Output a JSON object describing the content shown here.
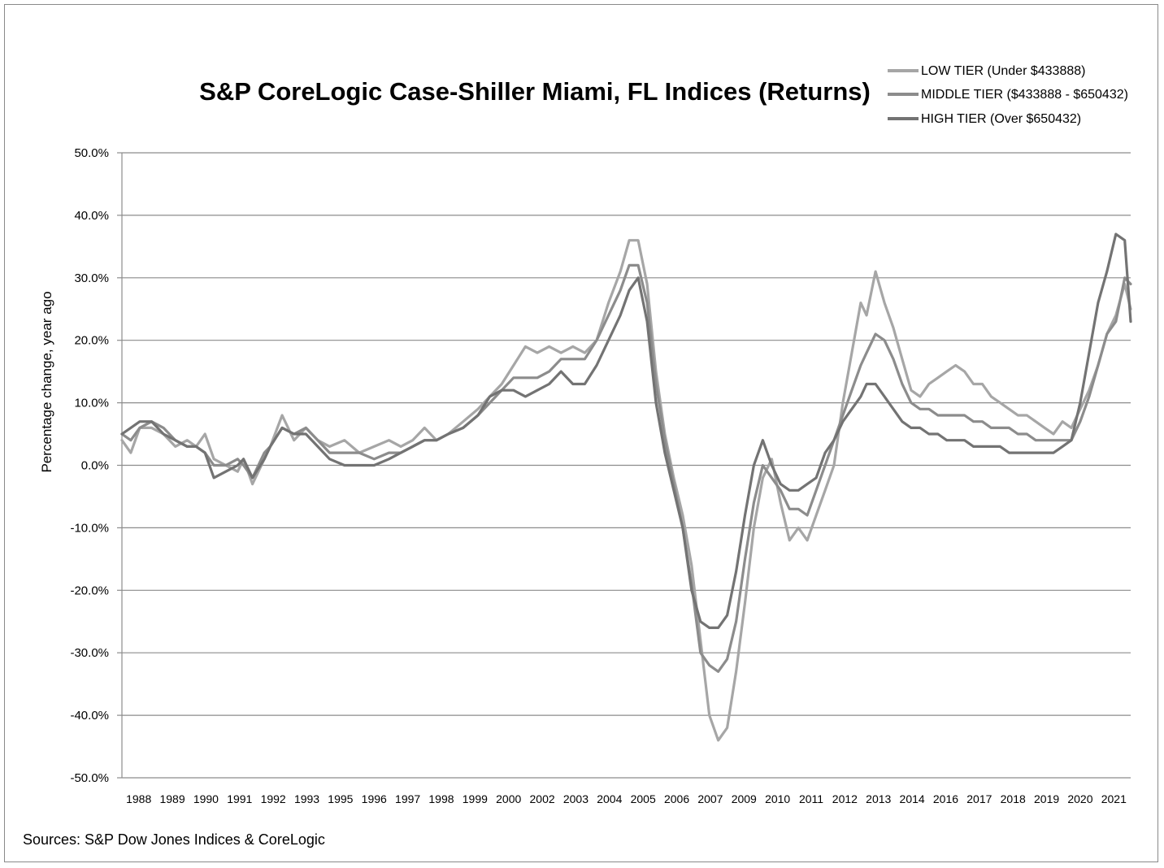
{
  "chart_data": {
    "type": "line",
    "title": "S&P CoreLogic Case-Shiller Miami, FL Indices (Returns)",
    "xlabel": "",
    "ylabel": "Percentage change, year ago",
    "source": "Sources: S&P Dow Jones Indices & CoreLogic",
    "ylim": [
      -50,
      50
    ],
    "xlim": [
      1988.0,
      2022.0
    ],
    "grid": true,
    "legend_position": "top-right",
    "y_ticks": [
      "50.0%",
      "40.0%",
      "30.0%",
      "20.0%",
      "10.0%",
      "0.0%",
      "-10.0%",
      "-20.0%",
      "-30.0%",
      "-40.0%",
      "-50.0%"
    ],
    "y_tick_values": [
      50,
      40,
      30,
      20,
      10,
      0,
      -10,
      -20,
      -30,
      -40,
      -50
    ],
    "x_ticks": [
      "1988",
      "1989",
      "1990",
      "1991",
      "1992",
      "1993",
      "1995",
      "1996",
      "1997",
      "1998",
      "1999",
      "2000",
      "2002",
      "2003",
      "2004",
      "2005",
      "2006",
      "2007",
      "2009",
      "2010",
      "2011",
      "2012",
      "2013",
      "2014",
      "2016",
      "2017",
      "2018",
      "2019",
      "2020",
      "2021"
    ],
    "series": [
      {
        "name": "LOW TIER (Under $433888)",
        "color": "#a6a6a6",
        "x": [
          1988.0,
          1988.3,
          1988.6,
          1989.0,
          1989.4,
          1989.8,
          1990.2,
          1990.5,
          1990.8,
          1991.1,
          1991.5,
          1991.9,
          1992.1,
          1992.4,
          1992.8,
          1993.0,
          1993.4,
          1993.8,
          1994.2,
          1994.6,
          1995.0,
          1995.5,
          1996.0,
          1996.5,
          1997.0,
          1997.4,
          1997.8,
          1998.2,
          1998.6,
          1999.0,
          1999.5,
          2000.0,
          2000.4,
          2000.8,
          2001.2,
          2001.6,
          2002.0,
          2002.4,
          2002.8,
          2003.2,
          2003.6,
          2004.0,
          2004.4,
          2004.8,
          2005.1,
          2005.4,
          2005.7,
          2006.0,
          2006.3,
          2006.6,
          2006.9,
          2007.2,
          2007.5,
          2007.8,
          2008.1,
          2008.4,
          2008.7,
          2009.0,
          2009.3,
          2009.6,
          2009.9,
          2010.2,
          2010.5,
          2010.8,
          2011.1,
          2011.4,
          2011.7,
          2012.0,
          2012.3,
          2012.6,
          2012.9,
          2013.1,
          2013.4,
          2013.7,
          2014.0,
          2014.3,
          2014.6,
          2014.9,
          2015.2,
          2015.5,
          2015.8,
          2016.1,
          2016.4,
          2016.7,
          2017.0,
          2017.3,
          2017.6,
          2017.9,
          2018.2,
          2018.5,
          2018.8,
          2019.1,
          2019.4,
          2019.7,
          2020.0,
          2020.3,
          2020.6,
          2020.9,
          2021.2,
          2021.5,
          2021.8,
          2022.0
        ],
        "values": [
          4,
          2,
          6,
          6,
          5,
          3,
          4,
          3,
          5,
          1,
          0,
          -1,
          1,
          -3,
          1,
          3,
          8,
          4,
          6,
          4,
          3,
          4,
          2,
          3,
          4,
          3,
          4,
          6,
          4,
          5,
          7,
          9,
          11,
          13,
          16,
          19,
          18,
          19,
          18,
          19,
          18,
          20,
          26,
          31,
          36,
          36,
          29,
          15,
          5,
          -2,
          -8,
          -16,
          -28,
          -40,
          -44,
          -42,
          -33,
          -22,
          -10,
          -2,
          1,
          -6,
          -12,
          -10,
          -12,
          -8,
          -4,
          0,
          10,
          18,
          26,
          24,
          31,
          26,
          22,
          17,
          12,
          11,
          13,
          14,
          15,
          16,
          15,
          13,
          13,
          11,
          10,
          9,
          8,
          8,
          7,
          6,
          5,
          7,
          6,
          9,
          12,
          16,
          21,
          24,
          29,
          25
        ]
      },
      {
        "name": "MIDDLE TIER ($433888 - $650432)",
        "color": "#8c8c8c",
        "x": [
          1988.0,
          1988.3,
          1988.6,
          1989.0,
          1989.4,
          1989.8,
          1990.2,
          1990.5,
          1990.8,
          1991.1,
          1991.5,
          1991.9,
          1992.1,
          1992.4,
          1992.8,
          1993.0,
          1993.4,
          1993.8,
          1994.2,
          1994.6,
          1995.0,
          1995.5,
          1996.0,
          1996.5,
          1997.0,
          1997.4,
          1997.8,
          1998.2,
          1998.6,
          1999.0,
          1999.5,
          2000.0,
          2000.4,
          2000.8,
          2001.2,
          2001.6,
          2002.0,
          2002.4,
          2002.8,
          2003.2,
          2003.6,
          2004.0,
          2004.4,
          2004.8,
          2005.1,
          2005.4,
          2005.7,
          2006.0,
          2006.3,
          2006.6,
          2006.9,
          2007.2,
          2007.5,
          2007.8,
          2008.1,
          2008.4,
          2008.7,
          2009.0,
          2009.3,
          2009.6,
          2009.9,
          2010.2,
          2010.5,
          2010.8,
          2011.1,
          2011.4,
          2011.7,
          2012.0,
          2012.3,
          2012.6,
          2012.9,
          2013.1,
          2013.4,
          2013.7,
          2014.0,
          2014.3,
          2014.6,
          2014.9,
          2015.2,
          2015.5,
          2015.8,
          2016.1,
          2016.4,
          2016.7,
          2017.0,
          2017.3,
          2017.6,
          2017.9,
          2018.2,
          2018.5,
          2018.8,
          2019.1,
          2019.4,
          2019.7,
          2020.0,
          2020.3,
          2020.6,
          2020.9,
          2021.2,
          2021.5,
          2021.8,
          2022.0
        ],
        "values": [
          5,
          4,
          6,
          7,
          6,
          4,
          3,
          3,
          2,
          0,
          0,
          1,
          0,
          -2,
          2,
          3,
          6,
          5,
          6,
          4,
          2,
          2,
          2,
          1,
          2,
          2,
          3,
          4,
          4,
          5,
          6,
          8,
          10,
          12,
          14,
          14,
          14,
          15,
          17,
          17,
          17,
          20,
          24,
          28,
          32,
          32,
          26,
          13,
          4,
          -3,
          -10,
          -19,
          -30,
          -32,
          -33,
          -31,
          -25,
          -15,
          -6,
          0,
          -2,
          -4,
          -7,
          -7,
          -8,
          -4,
          0,
          4,
          8,
          12,
          16,
          18,
          21,
          20,
          17,
          13,
          10,
          9,
          9,
          8,
          8,
          8,
          8,
          7,
          7,
          6,
          6,
          6,
          5,
          5,
          4,
          4,
          4,
          4,
          4,
          7,
          11,
          16,
          21,
          23,
          30,
          29
        ]
      },
      {
        "name": "HIGH TIER (Over $650432)",
        "color": "#737373",
        "x": [
          1988.0,
          1988.3,
          1988.6,
          1989.0,
          1989.4,
          1989.8,
          1990.2,
          1990.5,
          1990.8,
          1991.1,
          1991.5,
          1991.9,
          1992.1,
          1992.4,
          1992.8,
          1993.0,
          1993.4,
          1993.8,
          1994.2,
          1994.6,
          1995.0,
          1995.5,
          1996.0,
          1996.5,
          1997.0,
          1997.4,
          1997.8,
          1998.2,
          1998.6,
          1999.0,
          1999.5,
          2000.0,
          2000.4,
          2000.8,
          2001.2,
          2001.6,
          2002.0,
          2002.4,
          2002.8,
          2003.2,
          2003.6,
          2004.0,
          2004.4,
          2004.8,
          2005.1,
          2005.4,
          2005.7,
          2006.0,
          2006.3,
          2006.6,
          2006.9,
          2007.2,
          2007.5,
          2007.8,
          2008.1,
          2008.4,
          2008.7,
          2009.0,
          2009.3,
          2009.6,
          2009.9,
          2010.2,
          2010.5,
          2010.8,
          2011.1,
          2011.4,
          2011.7,
          2012.0,
          2012.3,
          2012.6,
          2012.9,
          2013.1,
          2013.4,
          2013.7,
          2014.0,
          2014.3,
          2014.6,
          2014.9,
          2015.2,
          2015.5,
          2015.8,
          2016.1,
          2016.4,
          2016.7,
          2017.0,
          2017.3,
          2017.6,
          2017.9,
          2018.2,
          2018.5,
          2018.8,
          2019.1,
          2019.4,
          2019.7,
          2020.0,
          2020.3,
          2020.6,
          2020.9,
          2021.2,
          2021.5,
          2021.8,
          2022.0
        ],
        "values": [
          5,
          6,
          7,
          7,
          5,
          4,
          3,
          3,
          2,
          -2,
          -1,
          0,
          1,
          -2,
          1,
          3,
          6,
          5,
          5,
          3,
          1,
          0,
          0,
          0,
          1,
          2,
          3,
          4,
          4,
          5,
          6,
          8,
          11,
          12,
          12,
          11,
          12,
          13,
          15,
          13,
          13,
          16,
          20,
          24,
          28,
          30,
          23,
          10,
          2,
          -4,
          -10,
          -20,
          -25,
          -26,
          -26,
          -24,
          -17,
          -8,
          0,
          4,
          0,
          -3,
          -4,
          -4,
          -3,
          -2,
          2,
          4,
          7,
          9,
          11,
          13,
          13,
          11,
          9,
          7,
          6,
          6,
          5,
          5,
          4,
          4,
          4,
          3,
          3,
          3,
          3,
          2,
          2,
          2,
          2,
          2,
          2,
          3,
          4,
          10,
          18,
          26,
          31,
          37,
          36,
          23
        ]
      }
    ]
  }
}
